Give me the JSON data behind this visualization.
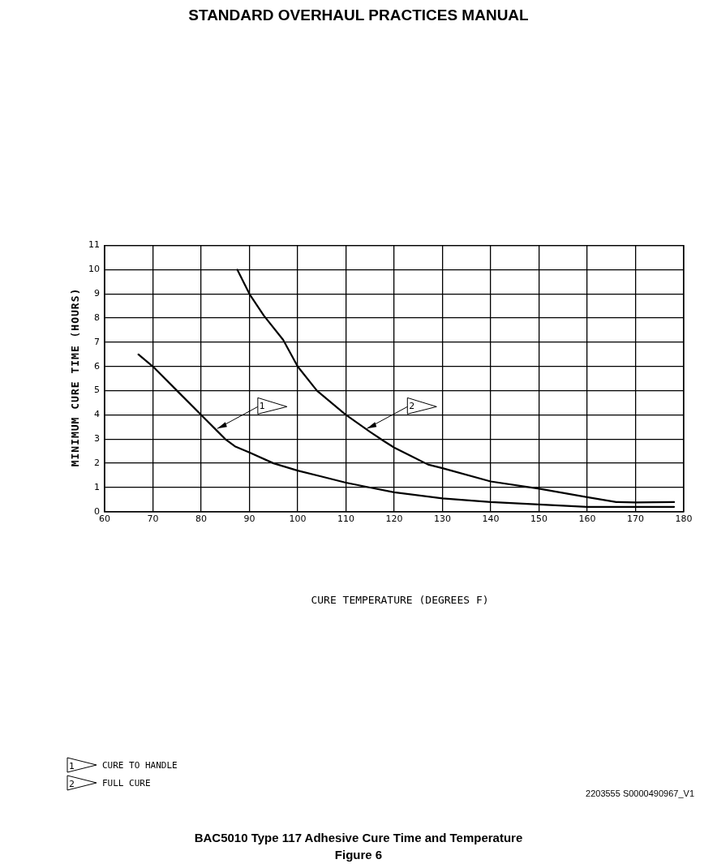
{
  "chart_data": {
    "type": "line",
    "title": "STANDARD OVERHAUL PRACTICES MANUAL",
    "ylabel": "MINIMUM CURE TIME (HOURS)",
    "xlim": [
      60,
      180
    ],
    "xticks": [
      60,
      70,
      80,
      90,
      100,
      110,
      120,
      130,
      140,
      150,
      160,
      170,
      180
    ],
    "ylim": [
      0,
      11
    ],
    "yticks": [
      0,
      1,
      2,
      3,
      4,
      5,
      6,
      7,
      8,
      9,
      10,
      11
    ],
    "grid": true,
    "marker": "none",
    "line_style": "solid",
    "legend": "bottom left",
    "series": [
      {
        "name": "CURE TO HANDLE",
        "color": "#000000",
        "x": [
          67,
          70,
          75,
          80,
          83,
          85,
          87,
          90,
          95,
          100,
          105,
          110,
          115,
          120,
          130,
          140,
          150,
          160,
          170,
          178
        ],
        "values": [
          6.5,
          6,
          5,
          4,
          3.4,
          3,
          2.7,
          2.45,
          2,
          1.7,
          1.45,
          1.2,
          1,
          0.8,
          0.55,
          0.4,
          0.3,
          0.2,
          0.2,
          0.2
        ]
      },
      {
        "name": "FULL CURE",
        "color": "#000000",
        "x": [
          87.5,
          90,
          93,
          97,
          100,
          104,
          110,
          115,
          118,
          120,
          127,
          130,
          140,
          150,
          160,
          166,
          170,
          178
        ],
        "values": [
          10,
          9,
          8.1,
          7.1,
          6,
          5,
          4,
          3.3,
          2.9,
          2.65,
          1.95,
          1.8,
          1.25,
          0.95,
          0.6,
          0.4,
          0.38,
          0.4
        ]
      }
    ],
    "annotations": [
      {
        "text": "1",
        "x": 83,
        "y": 3.4
      },
      {
        "text": "2",
        "x": 114,
        "y": 3.4
      },
      "CURE TEMPERATURE (DEGREES F)",
      "2203555 S0000490967_V1",
      "BAC5010 Type 117 Adhesive Cure Time and Temperature",
      "Figure 6"
    ]
  }
}
